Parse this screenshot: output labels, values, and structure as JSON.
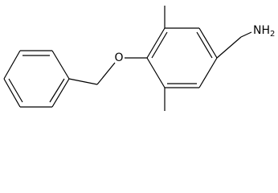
{
  "atoms": {
    "oxygen": "O",
    "amine": {
      "main": "NH",
      "sub": "2"
    }
  }
}
